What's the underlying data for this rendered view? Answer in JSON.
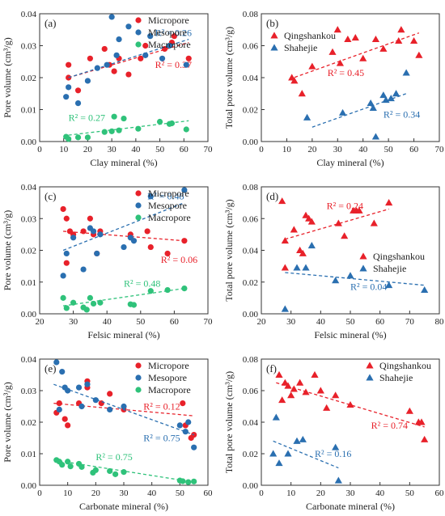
{
  "colors": {
    "red": "#e8212a",
    "blue": "#2a6fb0",
    "green": "#2fc27a"
  },
  "chart_data": [
    {
      "id": "a",
      "panel_label": "(a)",
      "type": "scatter",
      "xlabel": "Clay mineral (%)",
      "ylabel": "Pore volume (cm³/g)",
      "xlim": [
        0,
        70
      ],
      "ylim": [
        0,
        0.04
      ],
      "xticks": [
        "0",
        "10",
        "20",
        "30",
        "40",
        "50",
        "60",
        "70"
      ],
      "yticks": [
        "0.00",
        "0.01",
        "0.02",
        "0.03",
        "0.04"
      ],
      "legend_position": "top-right",
      "series": [
        {
          "name": "Micropore",
          "color": "red",
          "marker": "circle",
          "x": [
            12,
            12,
            16,
            21,
            27,
            29,
            31,
            33,
            37,
            42,
            44,
            52,
            55,
            56,
            62
          ],
          "y": [
            0.02,
            0.024,
            0.016,
            0.026,
            0.029,
            0.024,
            0.022,
            0.026,
            0.021,
            0.026,
            0.03,
            0.029,
            0.031,
            0.033,
            0.026
          ],
          "fit": [
            [
              12,
              0.02
            ],
            [
              62,
              0.031
            ]
          ],
          "r2": "R² = 0.37",
          "r2_at": [
            48,
            0.023
          ]
        },
        {
          "name": "Mesopore",
          "color": "blue",
          "marker": "circle",
          "x": [
            11,
            12,
            16,
            20,
            24,
            28,
            30,
            32,
            33,
            37,
            44,
            46,
            51,
            54,
            61
          ],
          "y": [
            0.014,
            0.017,
            0.012,
            0.019,
            0.023,
            0.024,
            0.039,
            0.027,
            0.032,
            0.036,
            0.027,
            0.033,
            0.026,
            0.03,
            0.024
          ],
          "fit": [
            [
              12,
              0.02
            ],
            [
              62,
              0.032
            ]
          ],
          "r2": "R² = 0.26",
          "r2_at": [
            48,
            0.033
          ]
        },
        {
          "name": "Macropore",
          "color": "green",
          "marker": "circle",
          "x": [
            11,
            12,
            16,
            20,
            27,
            30,
            31,
            33,
            35,
            41,
            50,
            54,
            55,
            61
          ],
          "y": [
            0.0015,
            0.0008,
            0.0013,
            0.0013,
            0.003,
            0.0032,
            0.0078,
            0.0035,
            0.0072,
            0.004,
            0.0062,
            0.0055,
            0.0057,
            0.0038
          ],
          "fit": [
            [
              12,
              0.002
            ],
            [
              62,
              0.0065
            ]
          ],
          "r2": "R² = 0.27",
          "r2_at": [
            12,
            0.0065
          ]
        }
      ]
    },
    {
      "id": "b",
      "panel_label": "(b)",
      "type": "scatter",
      "xlabel": "Clay mineral (%)",
      "ylabel": "Total pore volume (cm³/g)",
      "xlim": [
        0,
        70
      ],
      "ylim": [
        0,
        0.08
      ],
      "xticks": [
        "0",
        "10",
        "20",
        "30",
        "40",
        "50",
        "60",
        "70"
      ],
      "yticks": [
        "0.00",
        "0.02",
        "0.04",
        "0.06",
        "0.08"
      ],
      "legend_position": "top-left",
      "series": [
        {
          "name": "Qingshankou",
          "color": "red",
          "marker": "triangle",
          "x": [
            12,
            13,
            16,
            20,
            28,
            30,
            31,
            34,
            37,
            40,
            45,
            48,
            54,
            55,
            60,
            62
          ],
          "y": [
            0.04,
            0.038,
            0.03,
            0.047,
            0.056,
            0.07,
            0.049,
            0.064,
            0.065,
            0.052,
            0.064,
            0.058,
            0.063,
            0.07,
            0.063,
            0.054
          ],
          "fit": [
            [
              11,
              0.039
            ],
            [
              62,
              0.068
            ]
          ],
          "r2": "R² = 0.45",
          "r2_at": [
            26,
            0.041
          ]
        },
        {
          "name": "Shahejie",
          "color": "blue",
          "marker": "triangle",
          "x": [
            18,
            32,
            43,
            44,
            45,
            48,
            49,
            51,
            53,
            57
          ],
          "y": [
            0.015,
            0.018,
            0.024,
            0.021,
            0.003,
            0.029,
            0.026,
            0.027,
            0.03,
            0.043
          ],
          "fit": [
            [
              20,
              0.009
            ],
            [
              57,
              0.03
            ]
          ],
          "r2": "R² = 0.34",
          "r2_at": [
            48,
            0.015
          ]
        }
      ]
    },
    {
      "id": "c",
      "panel_label": "(c)",
      "type": "scatter",
      "xlabel": "Felsic mineral (%)",
      "ylabel": "Pore volume (cm³/g)",
      "xlim": [
        20,
        70
      ],
      "ylim": [
        0,
        0.04
      ],
      "xticks": [
        "20",
        "30",
        "40",
        "50",
        "60",
        "70"
      ],
      "yticks": [
        "0.00",
        "0.01",
        "0.02",
        "0.03",
        "0.04"
      ],
      "legend_position": "top-right",
      "series": [
        {
          "name": "Micropore",
          "color": "red",
          "marker": "circle",
          "x": [
            27,
            28,
            28,
            29,
            30,
            33,
            35,
            36,
            37,
            38,
            47,
            52,
            53,
            58,
            63
          ],
          "y": [
            0.033,
            0.03,
            0.016,
            0.026,
            0.025,
            0.026,
            0.03,
            0.025,
            0.019,
            0.026,
            0.025,
            0.026,
            0.021,
            0.019,
            0.023
          ],
          "fit": [
            [
              27,
              0.026
            ],
            [
              63,
              0.023
            ]
          ],
          "r2": "R² = 0.06",
          "r2_at": [
            56,
            0.016
          ]
        },
        {
          "name": "Mesopore",
          "color": "blue",
          "marker": "circle",
          "x": [
            27,
            28,
            30,
            33,
            35,
            36,
            37,
            38,
            45,
            47,
            48,
            53,
            63
          ],
          "y": [
            0.012,
            0.019,
            0.024,
            0.014,
            0.027,
            0.026,
            0.019,
            0.025,
            0.021,
            0.024,
            0.023,
            0.037,
            0.039
          ],
          "fit": [
            [
              27,
              0.02
            ],
            [
              63,
              0.035
            ]
          ],
          "r2": "R² = 0.48",
          "r2_at": [
            52,
            0.036
          ]
        },
        {
          "name": "Macropore",
          "color": "green",
          "marker": "circle",
          "x": [
            27,
            28,
            30,
            33,
            34,
            35,
            36,
            38,
            47,
            48,
            53,
            58,
            63
          ],
          "y": [
            0.005,
            0.0018,
            0.0035,
            0.002,
            0.0013,
            0.005,
            0.0032,
            0.0035,
            0.003,
            0.0028,
            0.0072,
            0.0075,
            0.008
          ],
          "fit": [
            [
              27,
              0.0025
            ],
            [
              63,
              0.008
            ]
          ],
          "r2": "R² = 0.48",
          "r2_at": [
            45,
            0.0085
          ]
        }
      ]
    },
    {
      "id": "d",
      "panel_label": "(d)",
      "type": "scatter",
      "xlabel": "Felsic mineral (%)",
      "ylabel": "Total pore volume (cm³/g)",
      "xlim": [
        20,
        80
      ],
      "ylim": [
        0,
        0.08
      ],
      "xticks": [
        "20",
        "30",
        "40",
        "50",
        "60",
        "70",
        "80"
      ],
      "yticks": [
        "0.00",
        "0.02",
        "0.04",
        "0.06",
        "0.08"
      ],
      "legend_position": "bottom-right",
      "series": [
        {
          "name": "Qingshankou",
          "color": "red",
          "marker": "triangle",
          "x": [
            27,
            28,
            28,
            31,
            33,
            34,
            35,
            36,
            37,
            46,
            48,
            51,
            52,
            53,
            58,
            63
          ],
          "y": [
            0.071,
            0.046,
            0.029,
            0.053,
            0.04,
            0.038,
            0.062,
            0.06,
            0.058,
            0.057,
            0.049,
            0.065,
            0.065,
            0.065,
            0.057,
            0.07
          ],
          "fit": [
            [
              28,
              0.047
            ],
            [
              63,
              0.066
            ]
          ],
          "r2": "R² = 0.24",
          "r2_at": [
            42,
            0.066
          ]
        },
        {
          "name": "Shahejie",
          "color": "blue",
          "marker": "triangle",
          "x": [
            28,
            32,
            35,
            37,
            45,
            50,
            63,
            75
          ],
          "y": [
            0.003,
            0.029,
            0.029,
            0.043,
            0.021,
            0.024,
            0.018,
            0.015
          ],
          "fit": [
            [
              28,
              0.026
            ],
            [
              75,
              0.018
            ]
          ],
          "r2": "R² = 0.04",
          "r2_at": [
            50,
            0.015
          ]
        }
      ]
    },
    {
      "id": "e",
      "panel_label": "(e)",
      "type": "scatter",
      "xlabel": "Carbonate mineral (%)",
      "ylabel": "Pore volume (cm³/g)",
      "xlim": [
        0,
        60
      ],
      "ylim": [
        0,
        0.04
      ],
      "xticks": [
        "0",
        "10",
        "20",
        "30",
        "40",
        "50",
        "60"
      ],
      "yticks": [
        "0.00",
        "0.01",
        "0.02",
        "0.03",
        "0.04"
      ],
      "legend_position": "top-right",
      "series": [
        {
          "name": "Micropore",
          "color": "red",
          "marker": "circle",
          "x": [
            6,
            7,
            9,
            10,
            14,
            17,
            17,
            22,
            25,
            30,
            51,
            52,
            54,
            55
          ],
          "y": [
            0.023,
            0.026,
            0.021,
            0.019,
            0.026,
            0.033,
            0.031,
            0.026,
            0.029,
            0.024,
            0.026,
            0.019,
            0.015,
            0.016
          ],
          "fit": [
            [
              5,
              0.026
            ],
            [
              55,
              0.022
            ]
          ],
          "r2": "R² = 0.12",
          "r2_at": [
            37,
            0.024
          ]
        },
        {
          "name": "Mesopore",
          "color": "blue",
          "marker": "circle",
          "x": [
            6,
            7,
            8,
            9,
            10,
            14,
            15,
            17,
            20,
            25,
            30,
            50,
            52,
            53,
            55
          ],
          "y": [
            0.039,
            0.024,
            0.036,
            0.031,
            0.03,
            0.031,
            0.025,
            0.032,
            0.027,
            0.024,
            0.025,
            0.019,
            0.017,
            0.02,
            0.012
          ],
          "fit": [
            [
              5,
              0.032
            ],
            [
              55,
              0.016
            ]
          ],
          "r2": "R² = 0.75",
          "r2_at": [
            37,
            0.014
          ]
        },
        {
          "name": "Macropore",
          "color": "green",
          "marker": "circle",
          "x": [
            6,
            7,
            8,
            10,
            11,
            14,
            15,
            19,
            20,
            25,
            27,
            30,
            50,
            51,
            53,
            55
          ],
          "y": [
            0.008,
            0.0075,
            0.0065,
            0.0075,
            0.006,
            0.0068,
            0.0058,
            0.004,
            0.0048,
            0.0045,
            0.0035,
            0.0042,
            0.0015,
            0.0013,
            0.001,
            0.0012
          ],
          "fit": [
            [
              5,
              0.008
            ],
            [
              55,
              0.001
            ]
          ],
          "r2": "R² = 0.75",
          "r2_at": [
            20,
            0.008
          ]
        }
      ]
    },
    {
      "id": "f",
      "panel_label": "(f)",
      "type": "scatter",
      "xlabel": "Carbonate mineral (%)",
      "ylabel": "Total pore volume (cm³/g)",
      "xlim": [
        0,
        60
      ],
      "ylim": [
        0,
        0.08
      ],
      "xticks": [
        "0",
        "10",
        "20",
        "30",
        "40",
        "50",
        "60"
      ],
      "yticks": [
        "0.00",
        "0.02",
        "0.04",
        "0.06",
        "0.08"
      ],
      "legend_position": "top-right",
      "series": [
        {
          "name": "Qingshankou",
          "color": "red",
          "marker": "triangle",
          "x": [
            6,
            7,
            8,
            9,
            10,
            11,
            13,
            15,
            18,
            20,
            22,
            25,
            30,
            50,
            53,
            54,
            55
          ],
          "y": [
            0.07,
            0.054,
            0.065,
            0.063,
            0.057,
            0.061,
            0.065,
            0.059,
            0.07,
            0.06,
            0.049,
            0.057,
            0.051,
            0.047,
            0.04,
            0.04,
            0.029
          ],
          "fit": [
            [
              5,
              0.065
            ],
            [
              55,
              0.037
            ]
          ],
          "r2": "R² = 0.74",
          "r2_at": [
            37,
            0.036
          ]
        },
        {
          "name": "Shahejie",
          "color": "blue",
          "marker": "triangle",
          "x": [
            4,
            5,
            6,
            9,
            12,
            14,
            25,
            26
          ],
          "y": [
            0.02,
            0.043,
            0.014,
            0.02,
            0.028,
            0.029,
            0.024,
            0.003
          ],
          "fit": [
            [
              4,
              0.028
            ],
            [
              26,
              0.011
            ]
          ],
          "r2": "R² = 0.16",
          "r2_at": [
            18,
            0.018
          ]
        }
      ]
    }
  ]
}
